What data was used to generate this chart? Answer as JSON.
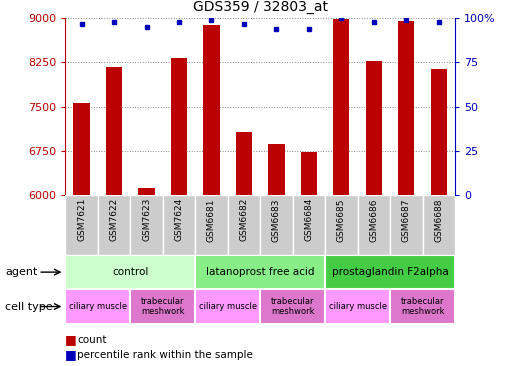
{
  "title": "GDS359 / 32803_at",
  "samples": [
    "GSM7621",
    "GSM7622",
    "GSM7623",
    "GSM7624",
    "GSM6681",
    "GSM6682",
    "GSM6683",
    "GSM6684",
    "GSM6685",
    "GSM6686",
    "GSM6687",
    "GSM6688"
  ],
  "counts": [
    7570,
    8170,
    6120,
    8330,
    8880,
    7070,
    6870,
    6730,
    8990,
    8280,
    8960,
    8140
  ],
  "percentile_ranks": [
    97,
    98,
    95,
    98,
    99,
    97,
    94,
    94,
    100,
    98,
    99,
    98
  ],
  "ylim_left": [
    6000,
    9000
  ],
  "ylim_right": [
    0,
    100
  ],
  "yticks_left": [
    6000,
    6750,
    7500,
    8250,
    9000
  ],
  "yticks_right": [
    0,
    25,
    50,
    75,
    100
  ],
  "bar_color": "#bb0000",
  "dot_color": "#0000bb",
  "grid_color": "#888888",
  "agents": [
    {
      "label": "control",
      "start": 0,
      "end": 4,
      "color": "#ccffcc"
    },
    {
      "label": "latanoprost free acid",
      "start": 4,
      "end": 8,
      "color": "#88ee88"
    },
    {
      "label": "prostaglandin F2alpha",
      "start": 8,
      "end": 12,
      "color": "#44cc44"
    }
  ],
  "cell_types": [
    {
      "label": "ciliary muscle",
      "start": 0,
      "end": 2,
      "color": "#ff99ff"
    },
    {
      "label": "trabecular\nmeshwork",
      "start": 2,
      "end": 4,
      "color": "#dd77cc"
    },
    {
      "label": "ciliary muscle",
      "start": 4,
      "end": 6,
      "color": "#ff99ff"
    },
    {
      "label": "trabecular\nmeshwork",
      "start": 6,
      "end": 8,
      "color": "#dd77cc"
    },
    {
      "label": "ciliary muscle",
      "start": 8,
      "end": 10,
      "color": "#ff99ff"
    },
    {
      "label": "trabecular\nmeshwork",
      "start": 10,
      "end": 12,
      "color": "#dd77cc"
    }
  ],
  "sample_bg": "#cccccc",
  "label_agent": "agent",
  "label_cell": "cell type",
  "legend_count": "count",
  "legend_pct": "percentile rank within the sample"
}
